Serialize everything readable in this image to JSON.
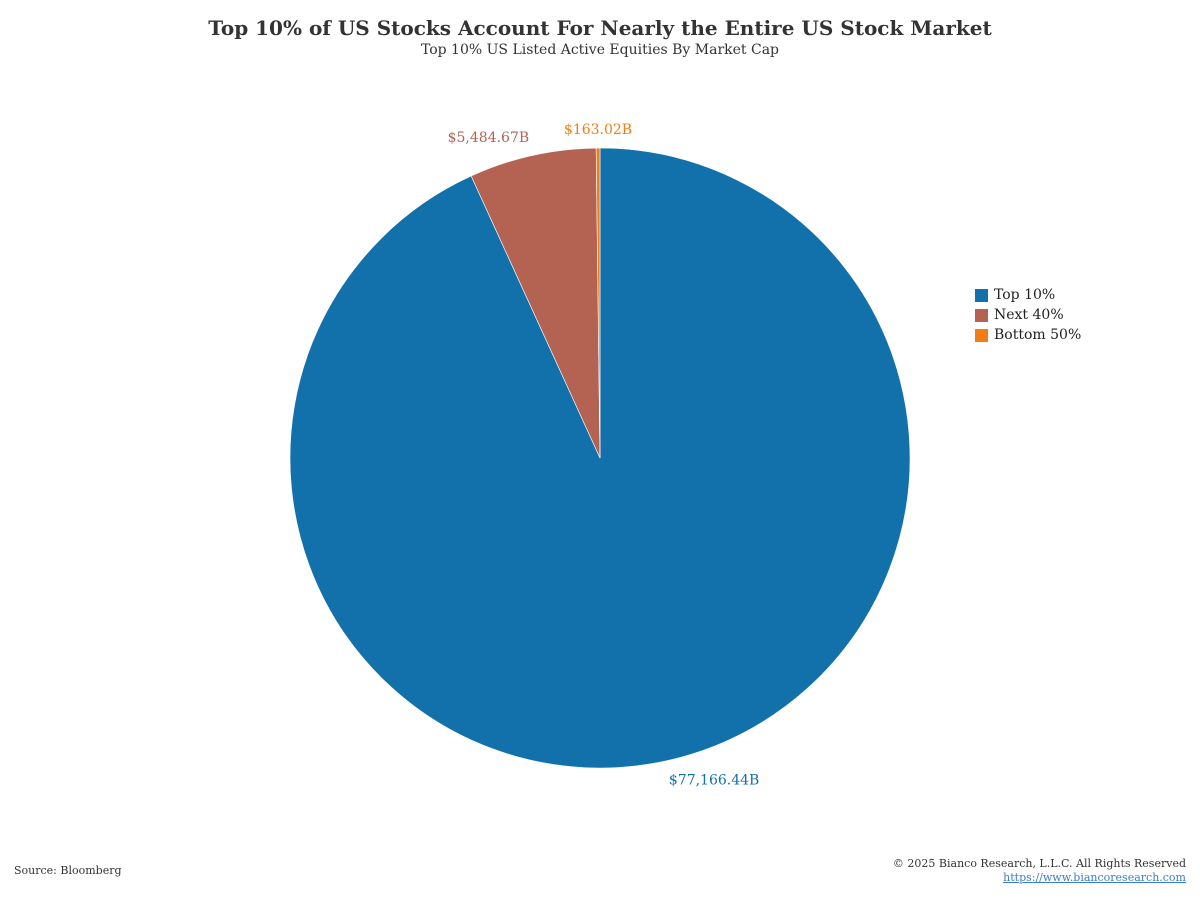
{
  "chart_data": {
    "type": "pie",
    "title": "Top 10% of US Stocks Account For Nearly the Entire US Stock Market",
    "subtitle": "Top 10% US Listed Active Equities By Market Cap",
    "slices": [
      {
        "name": "Top 10%",
        "value": 77166.44,
        "label": "$77,166.44B",
        "color": "#1270aa"
      },
      {
        "name": "Next 40%",
        "value": 5484.67,
        "label": "$5,484.67B",
        "color": "#b46352"
      },
      {
        "name": "Bottom 50%",
        "value": 163.02,
        "label": "$163.02B",
        "color": "#f47c14"
      }
    ],
    "legend_position": "right",
    "start_angle_deg": 0,
    "direction": "clockwise"
  },
  "footer": {
    "source": "Source: Bloomberg",
    "copyright": "© 2025 Bianco Research, L.L.C. All Rights Reserved",
    "url": "https://www.biancoresearch.com"
  }
}
